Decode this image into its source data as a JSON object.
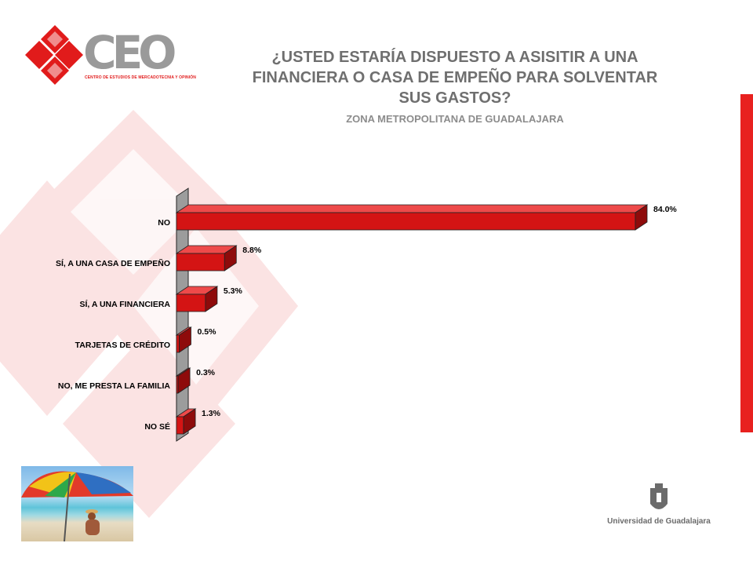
{
  "logo": {
    "word": "CEO",
    "tagline": "CENTRO DE ESTUDIOS DE MERCADOTECNIA Y OPINIÓN"
  },
  "header": {
    "title": "¿USTED ESTARÍA DISPUESTO A ASISITIR A UNA FINANCIERA O CASA DE EMPEÑO PARA SOLVENTAR SUS GASTOS?",
    "subtitle": "ZONA METROPOLITANA DE GUADALAJARA"
  },
  "chart_data": {
    "type": "bar",
    "orientation": "horizontal",
    "style": "3d",
    "categories": [
      "NO",
      "SÍ, A UNA CASA DE EMPEÑO",
      "SÍ, A UNA FINANCIERA",
      "TARJETAS DE CRÉDITO",
      "NO, ME PRESTA LA FAMILIA",
      "NO SÉ"
    ],
    "values": [
      84.0,
      8.8,
      5.3,
      0.5,
      0.3,
      1.3
    ],
    "data_labels": [
      "84.0%",
      "8.8%",
      "5.3%",
      "0.5%",
      "0.3%",
      "1.3%"
    ],
    "xlim": [
      0,
      84
    ],
    "grid": false,
    "bar_color": "#d41414"
  },
  "footer": {
    "university": "Universidad de Guadalajara"
  },
  "colors": {
    "accent": "#e8211f",
    "title": "#6f6f6f"
  }
}
